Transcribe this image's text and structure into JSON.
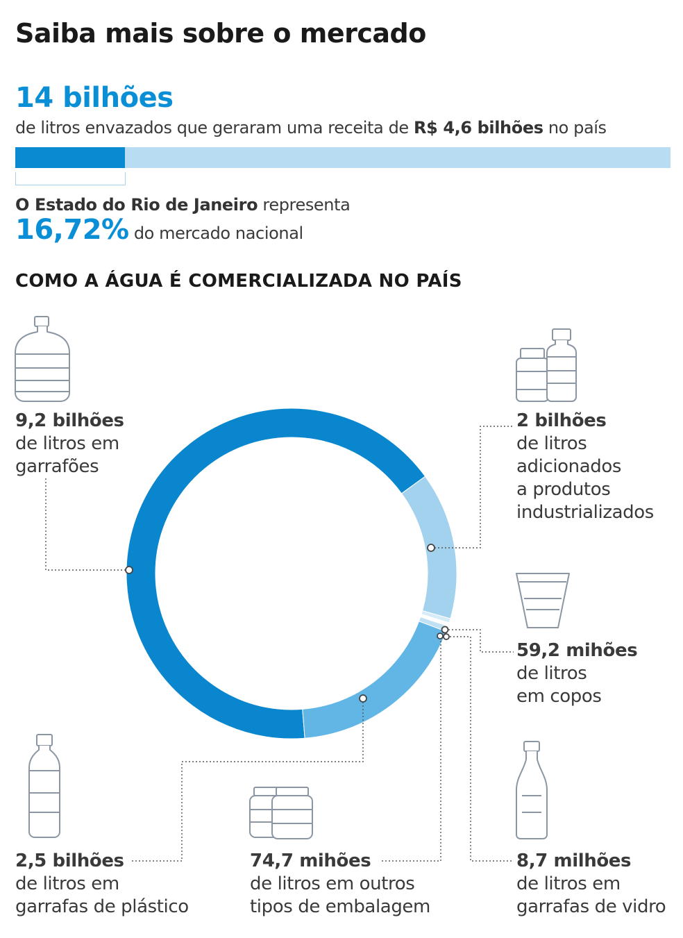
{
  "header": {
    "title": "Saiba mais sobre o mercado",
    "total_value": "14 bilhões",
    "total_desc_pre": "de litros envazados que geraram uma receita de ",
    "total_desc_bold": "R$ 4,6 bilhões",
    "total_desc_post": " no país",
    "rio_bold": "O Estado do Rio de Janeiro",
    "rio_rest": " representa",
    "rio_pct": "16,72%",
    "rio_pct_text": " do mercado nacional"
  },
  "progress": {
    "rio_share_percent": 16.72
  },
  "section_title": "COMO A ÁGUA É COMERCIALIZADA NO PAÍS",
  "chart_data": {
    "type": "pie",
    "title": "COMO A ÁGUA É COMERCIALIZADA NO PAÍS",
    "unit": "litros",
    "colors": {
      "garrafoes": "#0a86cf",
      "produtos": "#a3d2ee",
      "copos": "#d6ecf8",
      "vidro": "#ffffff",
      "outros": "#c0e0f4",
      "plastico": "#62b6e6"
    },
    "slices": [
      {
        "key": "garrafoes",
        "value": 9200000000,
        "value_label": "9,2 bilhões",
        "desc": [
          "de litros em",
          "garrafões"
        ],
        "icon": "water-jug-icon"
      },
      {
        "key": "produtos",
        "value": 2000000000,
        "value_label": "2 bilhões",
        "desc": [
          "de litros",
          "adicionados",
          "a produtos",
          "industrializados"
        ],
        "icon": "products-bottles-icon"
      },
      {
        "key": "copos",
        "value": 59200000,
        "value_label": "59,2 mihões",
        "desc": [
          "de litros",
          "em copos"
        ],
        "icon": "cup-icon"
      },
      {
        "key": "vidro",
        "value": 8700000,
        "value_label": "8,7 milhões",
        "desc": [
          "de litros em",
          "garrafas de vidro"
        ],
        "icon": "glass-bottle-icon"
      },
      {
        "key": "outros",
        "value": 74700000,
        "value_label": "74,7 mihões",
        "desc": [
          "de litros em outros",
          "tipos de embalagem"
        ],
        "icon": "jars-icon"
      },
      {
        "key": "plastico",
        "value": 2500000000,
        "value_label": "2,5 bilhões",
        "desc": [
          "de litros em",
          "garrafas de plástico"
        ],
        "icon": "plastic-bottle-icon"
      }
    ]
  }
}
